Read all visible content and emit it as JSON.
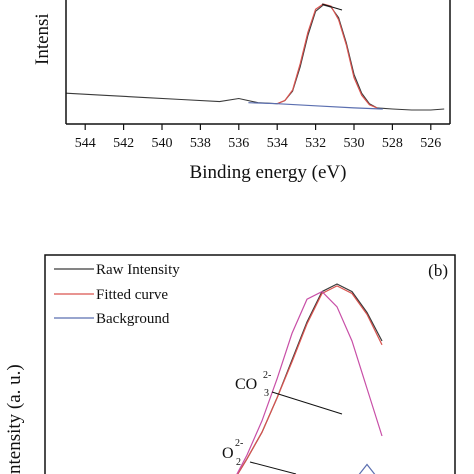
{
  "colors": {
    "raw": "#3a3a3a",
    "fitted": "#d9534f",
    "background": "#5b6fb0",
    "o2_component": "#c84fa7",
    "co3_component": "#d4733a",
    "axis": "#111111"
  },
  "chart_data": [
    {
      "panel": "a",
      "type": "line",
      "xlabel": "Binding energy (eV)",
      "ylabel_visible_fragment": "Intensi",
      "xlim": [
        545,
        525
      ],
      "x_reversed": true,
      "x_ticks": [
        544,
        542,
        540,
        538,
        536,
        534,
        532,
        530,
        528,
        526
      ],
      "series": [
        {
          "role": "raw",
          "x": [
            545,
            543,
            541,
            539,
            537,
            536,
            535,
            534,
            533.6,
            533.2,
            532.8,
            532.4,
            532.0,
            531.6,
            531.2,
            530.8,
            530.4,
            530.0,
            529.6,
            529.2,
            528.8,
            528,
            527,
            526,
            525.3
          ],
          "y": [
            0.3,
            0.28,
            0.26,
            0.24,
            0.22,
            0.25,
            0.21,
            0.2,
            0.23,
            0.32,
            0.55,
            0.85,
            1.08,
            1.14,
            1.12,
            1.02,
            0.78,
            0.48,
            0.3,
            0.2,
            0.16,
            0.15,
            0.14,
            0.14,
            0.15
          ]
        },
        {
          "role": "fitted",
          "x": [
            534,
            533.6,
            533.2,
            532.8,
            532.4,
            532.0,
            531.6,
            531.2,
            530.8,
            530.4,
            530.0,
            529.6,
            529.2,
            528.8
          ],
          "y": [
            0.2,
            0.23,
            0.33,
            0.58,
            0.88,
            1.1,
            1.15,
            1.13,
            1.0,
            0.76,
            0.45,
            0.28,
            0.19,
            0.16
          ]
        },
        {
          "role": "background",
          "x": [
            535.5,
            534,
            532,
            530,
            528.5
          ],
          "y": [
            0.21,
            0.2,
            0.18,
            0.16,
            0.15
          ]
        }
      ]
    },
    {
      "panel": "b",
      "type": "line",
      "panel_tag": "(b)",
      "ylabel_visible_fragment": "ntensity (a. u.)",
      "legend": [
        "Raw Intensity",
        "Fitted curve",
        "Background"
      ],
      "legend_position": "top-left",
      "annotations": [
        {
          "base": "CO",
          "sub": "3",
          "sup": "2-"
        },
        {
          "base": "O",
          "sub": "2",
          "sup": "2-"
        }
      ],
      "series": [
        {
          "role": "raw",
          "x": [
            0.0,
            0.1,
            0.2,
            0.3,
            0.4,
            0.5,
            0.6,
            0.7,
            0.8,
            0.9,
            1.0
          ],
          "y": [
            -0.05,
            0.08,
            0.22,
            0.4,
            0.6,
            0.8,
            0.96,
            1.0,
            0.96,
            0.85,
            0.7
          ]
        },
        {
          "role": "fitted",
          "x": [
            0.0,
            0.1,
            0.2,
            0.3,
            0.4,
            0.5,
            0.6,
            0.7,
            0.8,
            0.9,
            1.0
          ],
          "y": [
            -0.05,
            0.08,
            0.22,
            0.4,
            0.59,
            0.79,
            0.95,
            0.99,
            0.95,
            0.84,
            0.68
          ]
        },
        {
          "role": "o2_component",
          "x": [
            0.0,
            0.1,
            0.2,
            0.3,
            0.4,
            0.5,
            0.6,
            0.7,
            0.8,
            0.9,
            1.0
          ],
          "y": [
            -0.05,
            0.1,
            0.28,
            0.5,
            0.74,
            0.92,
            0.96,
            0.88,
            0.7,
            0.45,
            0.2
          ]
        },
        {
          "role": "background_component",
          "x": [
            0.8,
            0.85,
            0.9,
            0.95,
            1.0
          ],
          "y": [
            -0.05,
            0.0,
            0.05,
            0.0,
            -0.05
          ]
        }
      ]
    }
  ]
}
